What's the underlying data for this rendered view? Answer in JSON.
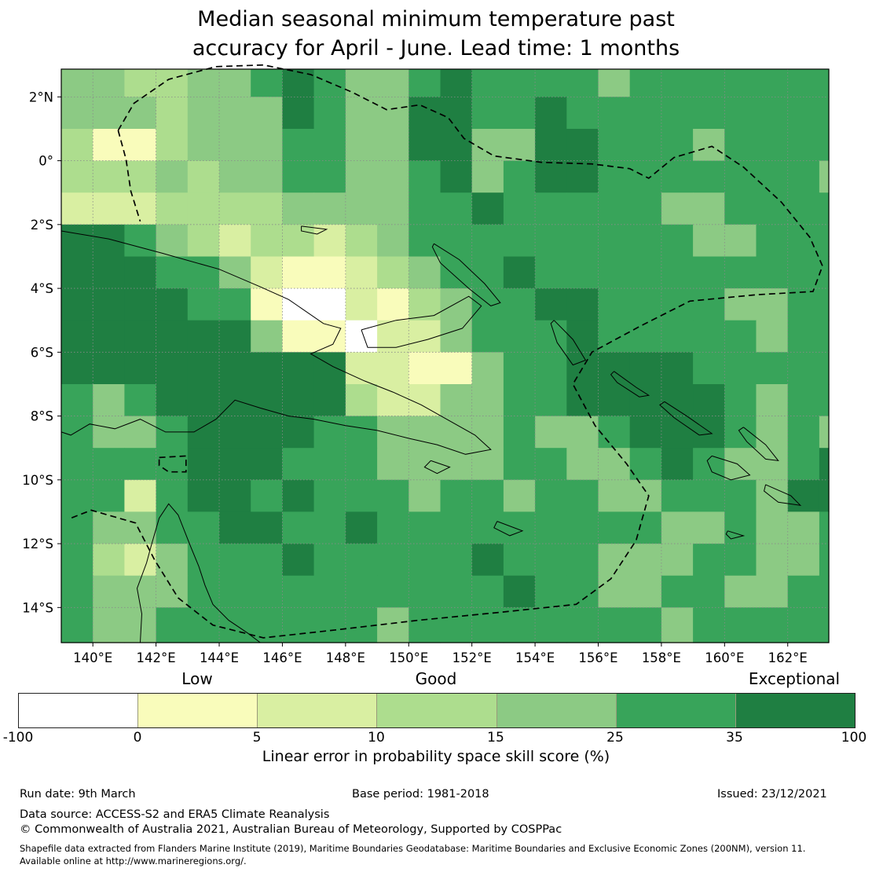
{
  "title": {
    "line1": "Median seasonal minimum temperature past",
    "line2": "accuracy for April - June. Lead time: 1 months"
  },
  "chart_data": {
    "type": "heatmap",
    "title": "Median seasonal minimum temperature past accuracy for April - June. Lead time: 1 months",
    "x_tick_labels": [
      "140°E",
      "142°E",
      "144°E",
      "146°E",
      "148°E",
      "150°E",
      "152°E",
      "154°E",
      "156°E",
      "158°E",
      "160°E",
      "162°E"
    ],
    "x_tick_lons": [
      140,
      142,
      144,
      146,
      148,
      150,
      152,
      154,
      156,
      158,
      160,
      162
    ],
    "y_tick_labels": [
      "2°N",
      "0°",
      "2°S",
      "4°S",
      "6°S",
      "8°S",
      "10°S",
      "12°S",
      "14°S"
    ],
    "y_tick_lats": [
      2,
      0,
      -2,
      -4,
      -6,
      -8,
      -10,
      -12,
      -14
    ],
    "lon_range": [
      139,
      163.3
    ],
    "lat_range": [
      -15.1,
      2.87
    ],
    "grid_on": true,
    "categories": [
      {
        "label": "-100 to 0",
        "color": "#ffffff"
      },
      {
        "label": "0 to 5",
        "color": "#f9fcbb"
      },
      {
        "label": "5 to 10",
        "color": "#d9efa2"
      },
      {
        "label": "10 to 15",
        "color": "#addd8e"
      },
      {
        "label": "15 to 25",
        "color": "#8cca84"
      },
      {
        "label": "25 to 35",
        "color": "#38a45a"
      },
      {
        "label": "35 to 100",
        "color": "#1f7f42"
      }
    ],
    "grid_note": "rows are 1-degree latitude bands from 2.87N down to 15.1S; cols are 1-degree longitude bands from 139E to 163.3E; digits index categories[]",
    "grid": [
      "4433445654456555545555555",
      "4443444654466556555555555",
      "3113444554466446655545555",
      "3334344554456456655555554",
      "2223333444455655555445555",
      "6654323323455555555544555",
      "6665542112345565555555555",
      "6666551002134556655554455",
      "6666664110224555655555455",
      "6666666662211455666655555",
      "5456666663224455666665455",
      "5445666655444454456665454",
      "5555666555444455445654456",
      "5525665655545545544555466",
      "5445566556555555555445445",
      "5324555655555655544455445",
      "5444555555555565544554455",
      "5445555555455555555455555"
    ],
    "overlays": {
      "coastlines": [
        [
          [
            139.0,
            -2.2
          ],
          [
            140.5,
            -2.45
          ],
          [
            142.2,
            -2.9
          ],
          [
            144.0,
            -3.4
          ],
          [
            145.3,
            -3.95
          ],
          [
            146.2,
            -4.35
          ],
          [
            147.3,
            -5.1
          ],
          [
            147.85,
            -5.25
          ],
          [
            147.6,
            -5.75
          ],
          [
            146.9,
            -6.05
          ],
          [
            147.6,
            -6.45
          ],
          [
            148.6,
            -6.9
          ],
          [
            149.5,
            -7.25
          ],
          [
            150.4,
            -7.65
          ],
          [
            151.2,
            -8.1
          ],
          [
            152.1,
            -8.6
          ],
          [
            152.6,
            -9.05
          ],
          [
            151.8,
            -9.2
          ],
          [
            150.9,
            -8.9
          ],
          [
            150.0,
            -8.7
          ],
          [
            149.0,
            -8.45
          ],
          [
            148.0,
            -8.3
          ],
          [
            147.0,
            -8.1
          ],
          [
            146.2,
            -8.0
          ],
          [
            145.3,
            -7.75
          ],
          [
            144.5,
            -7.5
          ],
          [
            143.9,
            -8.1
          ],
          [
            143.2,
            -8.5
          ],
          [
            142.3,
            -8.5
          ],
          [
            141.5,
            -8.1
          ],
          [
            140.7,
            -8.4
          ],
          [
            139.9,
            -8.25
          ],
          [
            139.3,
            -8.6
          ],
          [
            139.0,
            -8.5
          ]
        ],
        [
          [
            141.5,
            -15.1
          ],
          [
            141.55,
            -14.2
          ],
          [
            141.4,
            -13.4
          ],
          [
            141.7,
            -12.6
          ],
          [
            141.85,
            -12.05
          ],
          [
            142.1,
            -11.2
          ],
          [
            142.4,
            -10.75
          ],
          [
            142.7,
            -11.1
          ],
          [
            142.9,
            -11.6
          ],
          [
            143.1,
            -12.1
          ],
          [
            143.35,
            -12.7
          ],
          [
            143.55,
            -13.3
          ],
          [
            143.8,
            -13.9
          ],
          [
            144.3,
            -14.4
          ],
          [
            144.9,
            -14.8
          ],
          [
            145.3,
            -15.1
          ]
        ],
        [
          [
            148.5,
            -5.3
          ],
          [
            149.6,
            -5.0
          ],
          [
            150.8,
            -4.85
          ],
          [
            151.9,
            -4.25
          ],
          [
            152.3,
            -4.55
          ],
          [
            151.7,
            -5.25
          ],
          [
            150.6,
            -5.6
          ],
          [
            149.6,
            -5.85
          ],
          [
            148.7,
            -5.85
          ],
          [
            148.5,
            -5.3
          ]
        ],
        [
          [
            150.8,
            -2.6
          ],
          [
            151.6,
            -3.1
          ],
          [
            152.4,
            -3.85
          ],
          [
            152.9,
            -4.45
          ],
          [
            152.6,
            -4.55
          ],
          [
            151.9,
            -4.0
          ],
          [
            151.0,
            -3.2
          ],
          [
            150.75,
            -2.7
          ],
          [
            150.8,
            -2.6
          ]
        ],
        [
          [
            146.6,
            -2.05
          ],
          [
            147.4,
            -2.15
          ],
          [
            147.1,
            -2.3
          ],
          [
            146.6,
            -2.2
          ],
          [
            146.6,
            -2.05
          ]
        ],
        [
          [
            154.6,
            -5.0
          ],
          [
            155.2,
            -5.6
          ],
          [
            155.6,
            -6.25
          ],
          [
            155.2,
            -6.4
          ],
          [
            154.7,
            -5.7
          ],
          [
            154.5,
            -5.1
          ],
          [
            154.6,
            -5.0
          ]
        ],
        [
          [
            156.5,
            -6.6
          ],
          [
            157.2,
            -7.1
          ],
          [
            157.6,
            -7.35
          ],
          [
            157.3,
            -7.4
          ],
          [
            156.6,
            -6.95
          ],
          [
            156.4,
            -6.7
          ],
          [
            156.5,
            -6.6
          ]
        ],
        [
          [
            158.1,
            -7.55
          ],
          [
            158.8,
            -8.0
          ],
          [
            159.6,
            -8.55
          ],
          [
            159.2,
            -8.6
          ],
          [
            158.4,
            -8.05
          ],
          [
            157.95,
            -7.65
          ],
          [
            158.1,
            -7.55
          ]
        ],
        [
          [
            160.6,
            -8.35
          ],
          [
            161.3,
            -8.9
          ],
          [
            161.7,
            -9.4
          ],
          [
            161.3,
            -9.35
          ],
          [
            160.7,
            -8.8
          ],
          [
            160.45,
            -8.45
          ],
          [
            160.6,
            -8.35
          ]
        ],
        [
          [
            159.6,
            -9.25
          ],
          [
            160.4,
            -9.5
          ],
          [
            160.8,
            -9.85
          ],
          [
            160.2,
            -10.0
          ],
          [
            159.6,
            -9.75
          ],
          [
            159.45,
            -9.4
          ],
          [
            159.6,
            -9.25
          ]
        ],
        [
          [
            161.3,
            -10.15
          ],
          [
            162.1,
            -10.5
          ],
          [
            162.4,
            -10.8
          ],
          [
            161.7,
            -10.7
          ],
          [
            161.25,
            -10.35
          ],
          [
            161.3,
            -10.15
          ]
        ],
        [
          [
            150.7,
            -9.4
          ],
          [
            151.3,
            -9.6
          ],
          [
            150.9,
            -9.8
          ],
          [
            150.5,
            -9.6
          ],
          [
            150.7,
            -9.4
          ]
        ],
        [
          [
            152.8,
            -11.3
          ],
          [
            153.6,
            -11.6
          ],
          [
            153.2,
            -11.75
          ],
          [
            152.7,
            -11.5
          ],
          [
            152.8,
            -11.3
          ]
        ],
        [
          [
            160.1,
            -11.6
          ],
          [
            160.6,
            -11.75
          ],
          [
            160.2,
            -11.85
          ],
          [
            160.05,
            -11.7
          ],
          [
            160.1,
            -11.6
          ]
        ]
      ],
      "eez_boundaries": [
        [
          [
            140.8,
            0.95
          ],
          [
            141.3,
            1.8
          ],
          [
            142.4,
            2.55
          ],
          [
            143.9,
            2.95
          ],
          [
            145.4,
            3.0
          ],
          [
            146.9,
            2.7
          ],
          [
            148.2,
            2.15
          ],
          [
            149.3,
            1.6
          ],
          [
            150.35,
            1.75
          ],
          [
            151.25,
            1.35
          ],
          [
            151.75,
            0.7
          ],
          [
            152.7,
            0.15
          ],
          [
            154.2,
            -0.05
          ],
          [
            155.8,
            -0.1
          ],
          [
            157.0,
            -0.25
          ],
          [
            157.6,
            -0.55
          ],
          [
            158.4,
            0.1
          ],
          [
            159.6,
            0.45
          ],
          [
            160.6,
            -0.2
          ],
          [
            161.8,
            -1.3
          ],
          [
            162.7,
            -2.4
          ],
          [
            163.1,
            -3.3
          ],
          [
            162.8,
            -4.1
          ],
          [
            161.0,
            -4.2
          ],
          [
            158.9,
            -4.4
          ],
          [
            157.3,
            -5.2
          ],
          [
            155.8,
            -6.0
          ],
          [
            155.2,
            -7.0
          ],
          [
            155.9,
            -8.3
          ],
          [
            156.9,
            -9.5
          ],
          [
            157.6,
            -10.5
          ],
          [
            157.2,
            -11.9
          ],
          [
            156.4,
            -13.1
          ],
          [
            155.3,
            -13.9
          ],
          [
            152.9,
            -14.15
          ],
          [
            150.3,
            -14.4
          ],
          [
            147.7,
            -14.7
          ],
          [
            145.4,
            -14.95
          ],
          [
            143.8,
            -14.55
          ],
          [
            142.7,
            -13.7
          ],
          [
            141.95,
            -12.5
          ],
          [
            141.35,
            -11.35
          ],
          [
            139.95,
            -10.95
          ],
          [
            139.3,
            -11.2
          ]
        ],
        [
          [
            140.8,
            0.95
          ],
          [
            141.05,
            0.05
          ],
          [
            141.2,
            -0.95
          ],
          [
            141.5,
            -1.9
          ]
        ],
        [
          [
            142.1,
            -9.3
          ],
          [
            142.95,
            -9.25
          ],
          [
            142.95,
            -9.75
          ],
          [
            142.4,
            -9.75
          ],
          [
            142.1,
            -9.55
          ],
          [
            142.1,
            -9.3
          ]
        ]
      ]
    },
    "colorbar": {
      "ticks": [
        "-100",
        "0",
        "5",
        "10",
        "15",
        "25",
        "35",
        "100"
      ],
      "region_labels": [
        {
          "text": "Low",
          "segment_center": 1.5
        },
        {
          "text": "Good",
          "segment_center": 3.5
        },
        {
          "text": "Exceptional",
          "segment_center": 6.5
        }
      ],
      "caption": "Linear error in probability space skill score (%)"
    }
  },
  "footer": {
    "run_date": "Run date: 9th March",
    "base_period": "Base period: 1981-2018",
    "issued": "Issued: 23/12/2021",
    "data_source": "Data source: ACCESS-S2 and ERA5 Climate Reanalysis",
    "copyright": "© Commonwealth of Australia 2021, Australian Bureau of Meteorology, Supported by COSPPac",
    "shapefile_note_1": "Shapefile data extracted from Flanders Marine Institute (2019), Maritime Boundaries Geodatabase: Maritime Boundaries and Exclusive Economic Zones (200NM), version 11.",
    "shapefile_note_2": "Available online at http://www.marineregions.org/."
  }
}
